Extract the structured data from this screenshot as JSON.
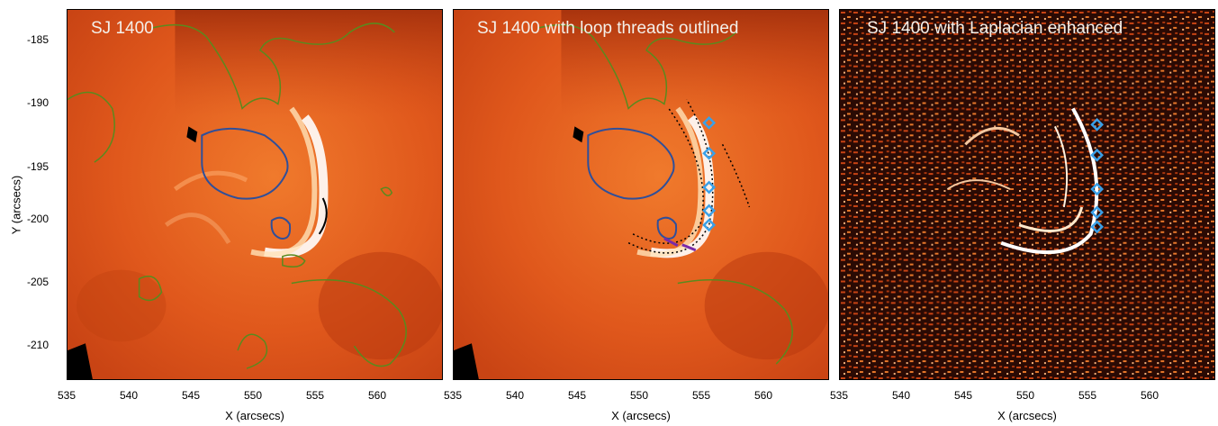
{
  "panels": [
    {
      "title": "SJ 1400"
    },
    {
      "title": "SJ 1400 with loop threads outlined"
    },
    {
      "title": "SJ 1400 with Laplacian enhanced"
    }
  ],
  "x_axis": {
    "label": "X (arcsecs)",
    "ticks": [
      "535",
      "540",
      "545",
      "550",
      "555",
      "560"
    ]
  },
  "y_axis": {
    "label": "Y (arcsecs)",
    "ticks": [
      "-185",
      "-190",
      "-195",
      "-200",
      "-205",
      "-210"
    ]
  },
  "colors": {
    "background_map": "#d9531c",
    "dark_region": "#9a2a08",
    "loop_bright": "#fff6e8",
    "contour_green": "#5a8a1e",
    "contour_blue": "#2f4f9a",
    "marker_cyan": "#3aa0e8",
    "marker_magenta": "#7a2aa8"
  }
}
